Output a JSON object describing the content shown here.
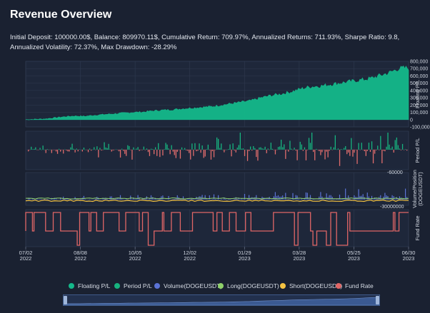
{
  "header": {
    "title": "Revenue Overview"
  },
  "summary": {
    "text": "Initial Deposit: 100000.00$, Balance: 809970.11$, Cumulative Return: 709.97%, Annualized Returns: 711.93%, Sharpe Ratio: 9.8, Annualized Volatility: 72.37%, Max Drawdown: -28.29%"
  },
  "colors": {
    "background": "#1a2131",
    "plot_bg": "#1e273a",
    "grid": "#2f3a50",
    "floating": "#14b88a",
    "period_pos": "#17b37f",
    "period_neg": "#e06c6c",
    "volume": "#5b73d6",
    "long": "#8fd16a",
    "short": "#f5c342",
    "fund_rate": "#e06666"
  },
  "chart_data": {
    "type": "line",
    "x_tick_labels": [
      {
        "date": "07/02",
        "year": "2022"
      },
      {
        "date": "08/08",
        "year": "2022"
      },
      {
        "date": "10/05",
        "year": "2022"
      },
      {
        "date": "12/02",
        "year": "2022"
      },
      {
        "date": "01/29",
        "year": "2023"
      },
      {
        "date": "03/28",
        "year": "2023"
      },
      {
        "date": "05/25",
        "year": "2023"
      },
      {
        "date": "06/30",
        "year": "2023"
      }
    ],
    "panels": [
      {
        "id": "floating",
        "ylabel": "Floating P/L",
        "y_ticks": [
          "800,000",
          "700,000",
          "600,000",
          "500,000",
          "400,000",
          "300,000",
          "200,000",
          "100,000",
          "0",
          "-100,000"
        ],
        "ylim": [
          -100000,
          800000
        ]
      },
      {
        "id": "period",
        "ylabel": "Period P/L",
        "y_ticks": [
          "-60000"
        ]
      },
      {
        "id": "volume",
        "ylabel": "Volume/Position (DOGEUSDT)",
        "y_ticks": [
          "-30000000"
        ]
      },
      {
        "id": "fund",
        "ylabel": "Fund Rate",
        "y_ticks": []
      }
    ],
    "series": [
      {
        "name": "Floating P/L",
        "color": "#14b88a",
        "values": [
          0,
          5000,
          10000,
          25000,
          40000,
          50000,
          45000,
          60000,
          70000,
          80000,
          90000,
          100000,
          105000,
          120000,
          130000,
          135000,
          150000,
          160000,
          170000,
          180000,
          200000,
          220000,
          240000,
          260000,
          300000,
          330000,
          350000,
          380000,
          420000,
          450000,
          460000,
          480000,
          500000,
          520000,
          540000,
          560000,
          600000,
          640000,
          700000,
          710000
        ]
      },
      {
        "name": "Period P/L",
        "color": "#17b37f"
      },
      {
        "name": "Volume(DOGEUSDT)",
        "color": "#5b73d6"
      },
      {
        "name": "Long(DOGEUSDT)",
        "color": "#8fd16a"
      },
      {
        "name": "Short(DOGEUSDT)",
        "color": "#f5c342"
      },
      {
        "name": "Fund Rate",
        "color": "#e06666"
      }
    ]
  },
  "legend": {
    "items": [
      {
        "label": "Floating P/L",
        "color": "#14b88a"
      },
      {
        "label": "Period P/L",
        "color": "#17b37f"
      },
      {
        "label": "Volume(DOGEUSDT)",
        "color": "#5b73d6"
      },
      {
        "label": "Long(DOGEUSDT)",
        "color": "#8fd16a"
      },
      {
        "label": "Short(DOGEUSDT)",
        "color": "#f5c342"
      },
      {
        "label": "Fund Rate",
        "color": "#e06666"
      }
    ]
  },
  "zoom_slider": {
    "range_percent": [
      0,
      100
    ]
  }
}
